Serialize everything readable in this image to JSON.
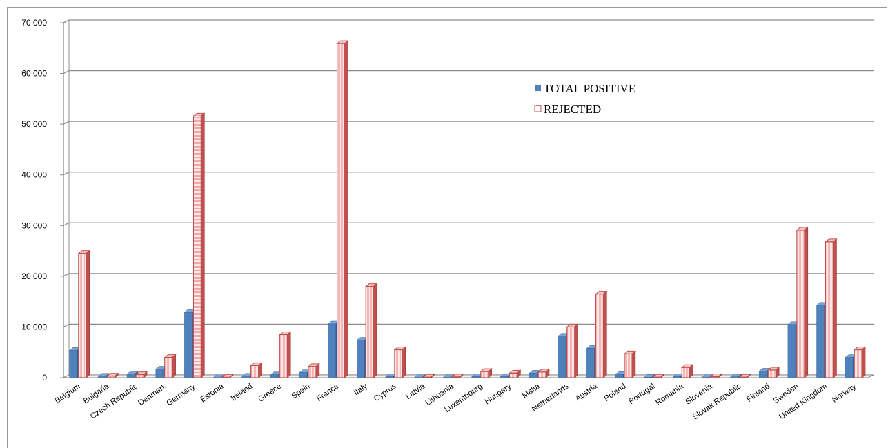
{
  "chart_data": {
    "type": "bar",
    "style": "3d-clustered-column",
    "categories": [
      "Belgium",
      "Bulgaria",
      "Czech Republic",
      "Denmark",
      "Germany",
      "Estonia",
      "Ireland",
      "Greece",
      "Spain",
      "France",
      "Italy",
      "Cyprus",
      "Latvia",
      "Lithuania",
      "Luxembourg",
      "Hungary",
      "Malta",
      "Netherlands",
      "Austria",
      "Poland",
      "Portugal",
      "Romania",
      "Slovenia",
      "Slovak Republic",
      "Finland",
      "Sweden",
      "United Kingdom",
      "Norway"
    ],
    "series": [
      {
        "name": "TOTAL POSITIVE",
        "color": "#4f81bd",
        "values": [
          5400,
          300,
          700,
          1700,
          12900,
          30,
          300,
          600,
          1000,
          10600,
          7400,
          200,
          50,
          50,
          200,
          250,
          900,
          8200,
          5800,
          650,
          100,
          200,
          50,
          150,
          1300,
          10500,
          14300,
          4000
        ]
      },
      {
        "name": "REJECTED",
        "color": "#c0504d",
        "fill": "#fbe0e0",
        "pattern": "hatched",
        "values": [
          24500,
          300,
          600,
          4000,
          51600,
          80,
          2400,
          8500,
          2200,
          65900,
          18000,
          5500,
          100,
          150,
          1200,
          900,
          1100,
          10000,
          16500,
          4700,
          100,
          2000,
          200,
          100,
          1500,
          29100,
          26800,
          5500
        ]
      }
    ],
    "ylim": [
      0,
      70000
    ],
    "yticks": [
      "0",
      "10 000",
      "20 000",
      "30 000",
      "40 000",
      "50 000",
      "60 000",
      "70 000"
    ],
    "grid": true,
    "legend_position": "upper-right-inside"
  }
}
